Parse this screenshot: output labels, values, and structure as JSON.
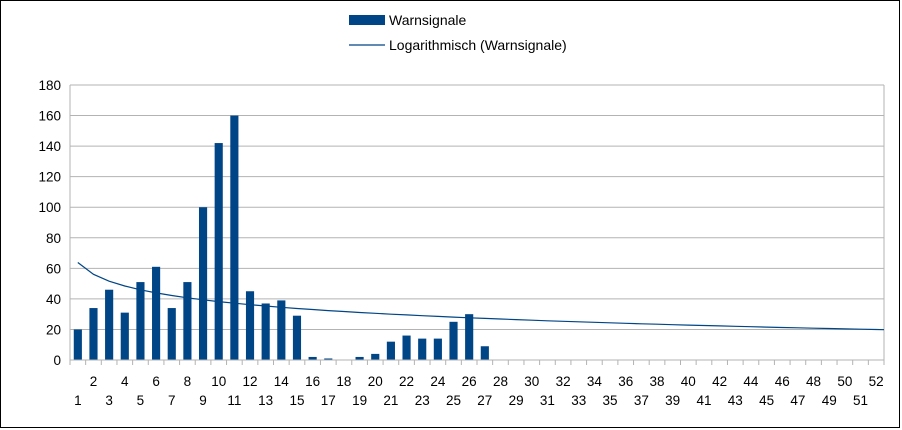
{
  "chart_data": {
    "type": "bar",
    "title": "",
    "xlabel": "",
    "ylabel": "",
    "ylim": [
      0,
      180
    ],
    "ytick_step": 20,
    "grid": true,
    "legend_position": "top-center",
    "categories": [
      1,
      2,
      3,
      4,
      5,
      6,
      7,
      8,
      9,
      10,
      11,
      12,
      13,
      14,
      15,
      16,
      17,
      18,
      19,
      20,
      21,
      22,
      23,
      24,
      25,
      26,
      27,
      28,
      29,
      30,
      31,
      32,
      33,
      34,
      35,
      36,
      37,
      38,
      39,
      40,
      41,
      42,
      43,
      44,
      45,
      46,
      47,
      48,
      49,
      50,
      51,
      52
    ],
    "series": [
      {
        "name": "Warnsignale",
        "kind": "bar",
        "color": "#004586",
        "values": [
          20,
          34,
          46,
          31,
          51,
          61,
          34,
          51,
          100,
          142,
          160,
          45,
          37,
          39,
          29,
          2,
          1,
          0,
          2,
          4,
          12,
          16,
          14,
          14,
          25,
          30,
          9,
          0,
          0,
          0,
          0,
          0,
          0,
          0,
          0,
          0,
          0,
          0,
          0,
          0,
          0,
          0,
          0,
          0,
          0,
          0,
          0,
          0,
          0,
          0,
          0,
          0
        ]
      },
      {
        "name": "Logarithmisch (Warnsignale)",
        "kind": "trendline-log",
        "color": "#004586",
        "a": 63.8,
        "b": -11.1
      }
    ]
  }
}
